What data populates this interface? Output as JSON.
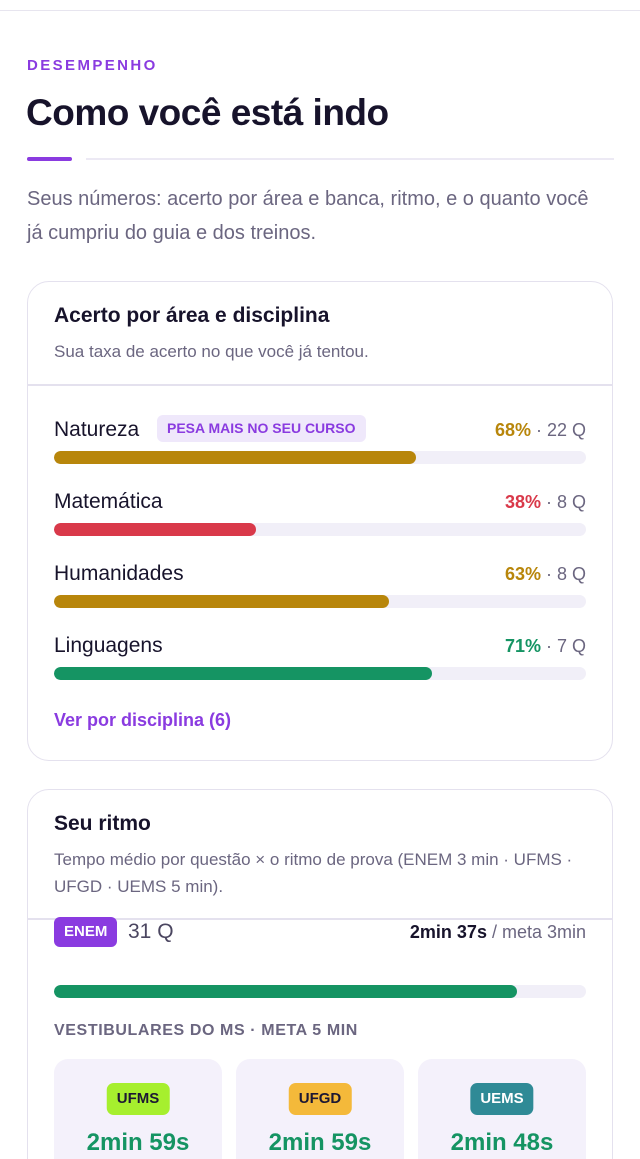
{
  "header": {
    "eyebrow": "DESEMPENHO",
    "title": "Como você está indo",
    "intro": "Seus números: acerto por área e banca, ritmo, e o quanto você já cumpriu do guia e dos treinos."
  },
  "colors": {
    "accent": "#8a3be0",
    "amber": "#b8860b",
    "red": "#d9394a",
    "green": "#159463"
  },
  "areas_card": {
    "title": "Acerto por área e disciplina",
    "subtitle": "Sua taxa de acerto no que você já tentou.",
    "link": "Ver por disciplina (6)",
    "areas": [
      {
        "name": "Natureza",
        "badge": "PESA MAIS NO SEU CURSO",
        "pct_label": "68%",
        "count_label": " · 22 Q",
        "percent": 68,
        "color": "#b8860b"
      },
      {
        "name": "Matemática",
        "badge": "",
        "pct_label": "38%",
        "count_label": " · 8 Q",
        "percent": 38,
        "color": "#d9394a"
      },
      {
        "name": "Humanidades",
        "badge": "",
        "pct_label": "63%",
        "count_label": " · 8 Q",
        "percent": 63,
        "color": "#b8860b"
      },
      {
        "name": "Linguagens",
        "badge": "",
        "pct_label": "71%",
        "count_label": " · 7 Q",
        "percent": 71,
        "color": "#159463"
      }
    ]
  },
  "pace_card": {
    "title": "Seu ritmo",
    "subtitle": "Tempo médio por questão × o ritmo de prova (ENEM 3 min · UFMS · UFGD · UEMS 5 min).",
    "enem": {
      "badge": "ENEM",
      "questions": "31 Q",
      "time": "2min 37s",
      "goal": " / meta 3min",
      "progress_fraction": 0.87
    },
    "vestibulares_caption": "VESTIBULARES DO MS · META 5 MIN",
    "vestibulares": [
      {
        "name": "UFMS",
        "time": "2min 59s",
        "badge_bg": "#a6ef2e",
        "badge_fg": "#1c1733"
      },
      {
        "name": "UFGD",
        "time": "2min 59s",
        "badge_bg": "#f4b93a",
        "badge_fg": "#1c1733"
      },
      {
        "name": "UEMS",
        "time": "2min 48s",
        "badge_bg": "#2f8a96",
        "badge_fg": "#ffffff"
      }
    ]
  }
}
